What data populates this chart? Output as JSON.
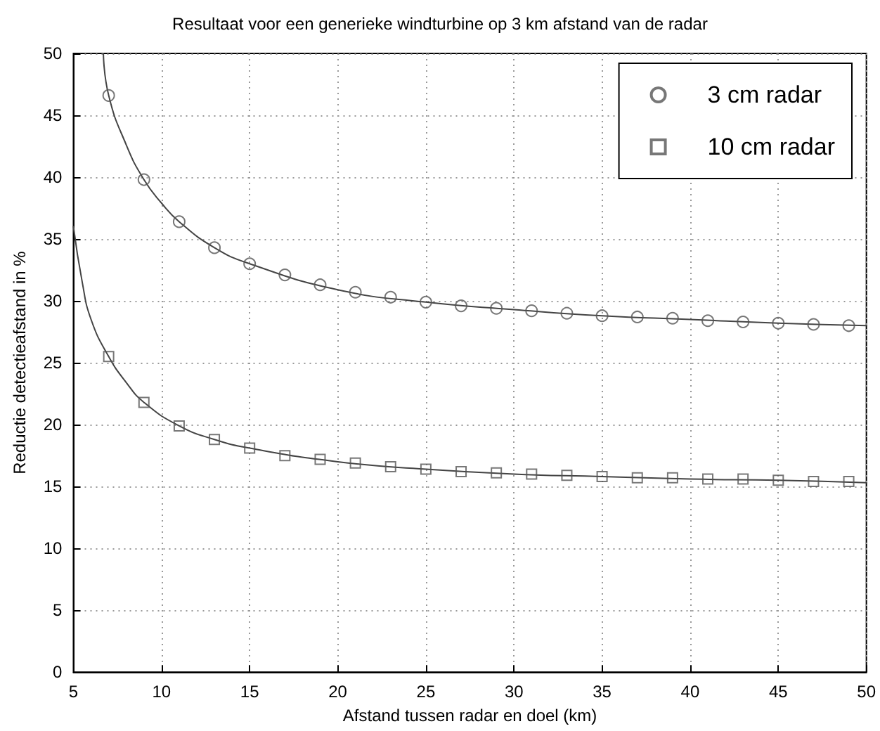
{
  "chart_data": {
    "type": "scatter",
    "title": "Resultaat voor een generieke windturbine op 3 km afstand van de radar",
    "xlabel": "Afstand tussen radar en doel (km)",
    "ylabel": "Reductie detectieafstand in %",
    "x": [
      7,
      9,
      11,
      13,
      15,
      17,
      19,
      21,
      23,
      25,
      27,
      29,
      31,
      33,
      35,
      37,
      39,
      41,
      43,
      45,
      47,
      49
    ],
    "series": [
      {
        "name": "3 cm radar",
        "marker": "circle",
        "color": "#555555",
        "values": [
          46.6,
          39.8,
          36.4,
          34.3,
          33.0,
          32.1,
          31.3,
          30.7,
          30.3,
          29.9,
          29.6,
          29.4,
          29.2,
          29.0,
          28.8,
          28.7,
          28.6,
          28.4,
          28.3,
          28.2,
          28.1,
          28.0
        ]
      },
      {
        "name": "10 cm radar",
        "marker": "square",
        "color": "#555555",
        "values": [
          25.5,
          21.8,
          19.9,
          18.8,
          18.1,
          17.5,
          17.2,
          16.9,
          16.6,
          16.4,
          16.2,
          16.1,
          16.0,
          15.9,
          15.8,
          15.7,
          15.7,
          15.6,
          15.6,
          15.5,
          15.4,
          15.4
        ]
      },
      {
        "type": "line",
        "line_style": "solid",
        "color": "#444444",
        "x": [
          6.7,
          7,
          8,
          9,
          10,
          11,
          13,
          15,
          20,
          25,
          30,
          35,
          40,
          45,
          50
        ],
        "values": [
          50,
          46.6,
          42.6,
          39.8,
          37.9,
          36.4,
          34.3,
          33.0,
          30.9,
          29.9,
          29.3,
          28.8,
          28.5,
          28.2,
          28.0
        ]
      },
      {
        "type": "line",
        "line_style": "solid",
        "color": "#444444",
        "x": [
          5,
          5.5,
          6,
          7,
          8,
          9,
          11,
          13,
          15,
          20,
          25,
          30,
          35,
          40,
          45,
          50
        ],
        "values": [
          36,
          31.5,
          28.5,
          25.5,
          23.4,
          21.8,
          19.9,
          18.8,
          18.1,
          17.0,
          16.4,
          16.0,
          15.8,
          15.6,
          15.5,
          15.3
        ]
      }
    ],
    "xlim": [
      5,
      50
    ],
    "xticks": [
      5,
      10,
      15,
      20,
      25,
      30,
      35,
      40,
      45,
      50
    ],
    "ylim": [
      0,
      50
    ],
    "yticks": [
      0,
      5,
      10,
      15,
      20,
      25,
      30,
      35,
      40,
      45,
      50
    ],
    "grid": true,
    "legend": "top right"
  }
}
